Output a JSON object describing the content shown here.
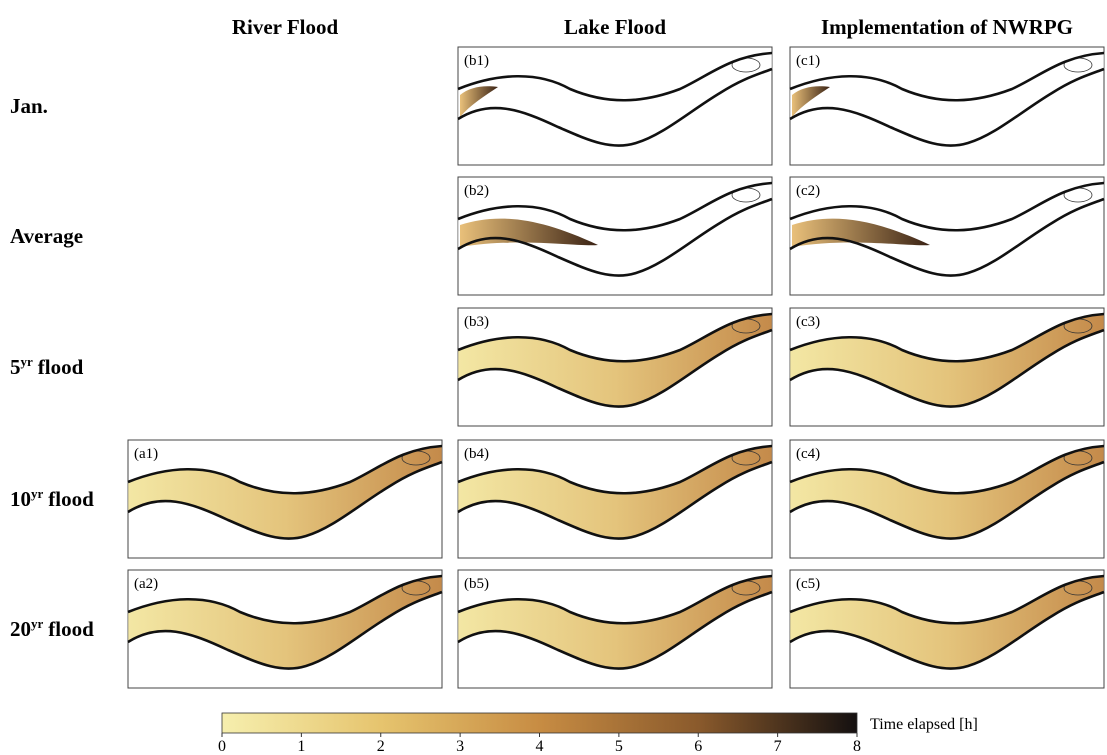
{
  "columns": [
    "River Flood",
    "Lake Flood",
    "Implementation of NWRPG"
  ],
  "rows": [
    {
      "base": "Jan.",
      "panels": [
        "(b1)",
        "(c1)"
      ]
    },
    {
      "base": "Average",
      "panels": [
        "(b2)",
        "(c2)"
      ]
    },
    {
      "base": "5",
      "sup": "yr",
      "rest": "flood",
      "panels": [
        "(b3)",
        "(c3)"
      ]
    },
    {
      "base": "10",
      "sup": "yr",
      "rest": "flood",
      "panels": [
        "(a1)",
        "(b4)",
        "(c4)"
      ]
    },
    {
      "base": "20",
      "sup": "yr",
      "rest": "flood",
      "panels": [
        "(a2)",
        "(b5)",
        "(c5)"
      ]
    }
  ],
  "colorbar": {
    "label": "Time elapsed [h]",
    "range": [
      0,
      8
    ],
    "ticks": [
      0,
      1,
      2,
      3,
      4,
      5,
      6,
      7,
      8
    ]
  }
}
